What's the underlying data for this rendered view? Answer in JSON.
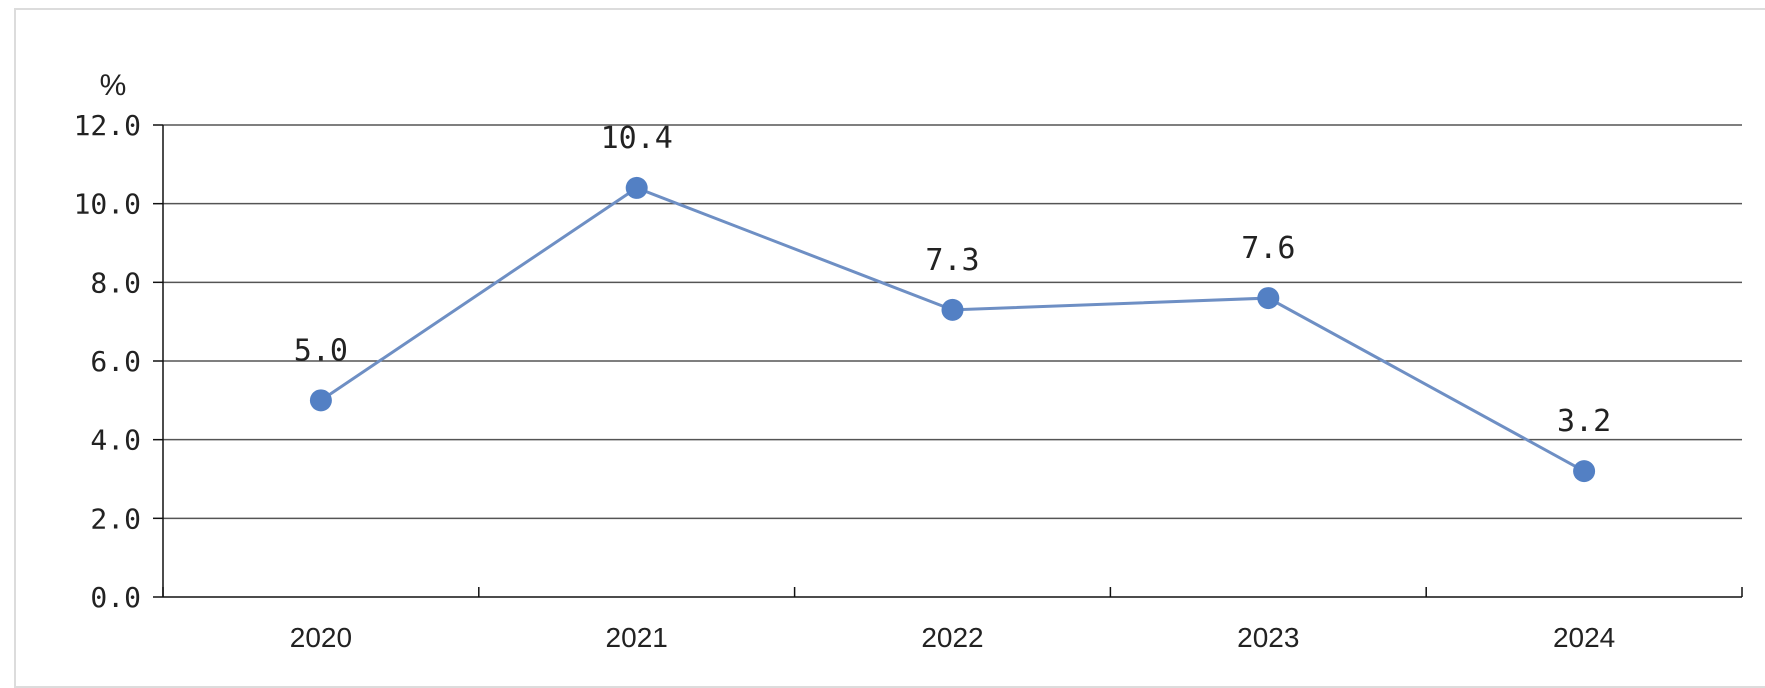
{
  "chart_data": {
    "type": "line",
    "title": "",
    "xlabel": "",
    "ylabel": "%",
    "categories": [
      "2020",
      "2021",
      "2022",
      "2023",
      "2024"
    ],
    "series": [
      {
        "values": [
          5.0,
          10.4,
          7.3,
          7.6,
          3.2
        ],
        "labels": [
          "5.0",
          "10.4",
          "7.3",
          "7.6",
          "3.2"
        ]
      }
    ],
    "ylim": [
      0,
      12
    ],
    "yticks": [
      "0.0",
      "2.0",
      "4.0",
      "6.0",
      "8.0",
      "10.0",
      "12.0"
    ],
    "grid": true,
    "legend": "none",
    "colors": {
      "line": "#6e8fc4",
      "marker": "#5380c4",
      "grid": "#555555",
      "axis": "#111111"
    }
  }
}
